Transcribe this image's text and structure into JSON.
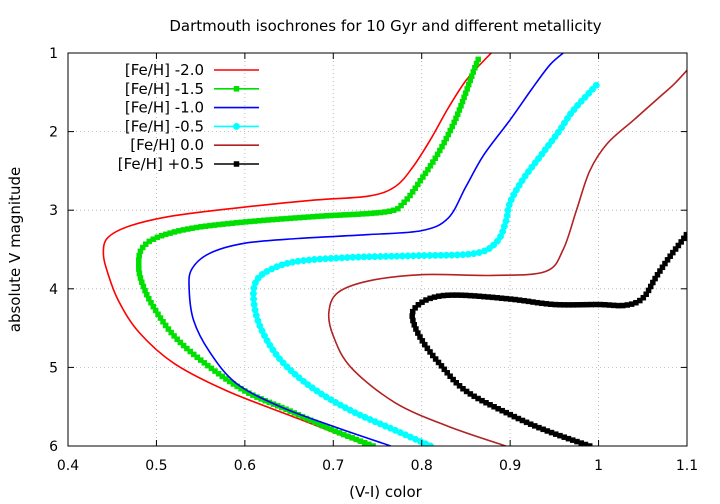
{
  "chart_data": {
    "type": "line",
    "title": "Dartmouth isochrones for 10 Gyr and different metallicity",
    "xlabel": "(V-I) color",
    "ylabel": "absolute V magnitude",
    "xlim": [
      0.4,
      1.1
    ],
    "ylim": [
      6,
      1
    ],
    "y_inverted": true,
    "grid": true,
    "legend_position": "top-left",
    "xticks": [
      "0.4",
      "0.5",
      "0.6",
      "0.7",
      "0.8",
      "0.9",
      "1",
      "1.1"
    ],
    "yticks": [
      "1",
      "2",
      "3",
      "4",
      "5",
      "6"
    ],
    "series": [
      {
        "name": "[Fe/H] -2.0",
        "color": "#ff0000",
        "marker": "none",
        "points": [
          [
            0.74,
            6.0
          ],
          [
            0.66,
            5.65
          ],
          [
            0.58,
            5.3
          ],
          [
            0.52,
            4.95
          ],
          [
            0.48,
            4.55
          ],
          [
            0.457,
            4.15
          ],
          [
            0.445,
            3.8
          ],
          [
            0.44,
            3.55
          ],
          [
            0.445,
            3.35
          ],
          [
            0.47,
            3.2
          ],
          [
            0.52,
            3.07
          ],
          [
            0.6,
            2.96
          ],
          [
            0.68,
            2.87
          ],
          [
            0.74,
            2.82
          ],
          [
            0.77,
            2.7
          ],
          [
            0.79,
            2.45
          ],
          [
            0.81,
            2.1
          ],
          [
            0.83,
            1.7
          ],
          [
            0.85,
            1.35
          ],
          [
            0.87,
            1.1
          ],
          [
            0.885,
            0.93
          ]
        ]
      },
      {
        "name": "[Fe/H] -1.5",
        "color": "#00e000",
        "marker": "square",
        "points": [
          [
            0.745,
            6.0
          ],
          [
            0.7,
            5.8
          ],
          [
            0.65,
            5.55
          ],
          [
            0.6,
            5.3
          ],
          [
            0.555,
            4.95
          ],
          [
            0.52,
            4.6
          ],
          [
            0.495,
            4.2
          ],
          [
            0.483,
            3.9
          ],
          [
            0.48,
            3.7
          ],
          [
            0.483,
            3.5
          ],
          [
            0.5,
            3.35
          ],
          [
            0.54,
            3.23
          ],
          [
            0.6,
            3.15
          ],
          [
            0.68,
            3.08
          ],
          [
            0.76,
            3.02
          ],
          [
            0.78,
            2.9
          ],
          [
            0.8,
            2.6
          ],
          [
            0.82,
            2.25
          ],
          [
            0.838,
            1.85
          ],
          [
            0.85,
            1.5
          ],
          [
            0.858,
            1.25
          ],
          [
            0.865,
            1.05
          ]
        ]
      },
      {
        "name": "[Fe/H] -1.0",
        "color": "#0000ff",
        "marker": "none",
        "points": [
          [
            0.765,
            6.0
          ],
          [
            0.7,
            5.75
          ],
          [
            0.64,
            5.5
          ],
          [
            0.59,
            5.2
          ],
          [
            0.56,
            4.8
          ],
          [
            0.542,
            4.4
          ],
          [
            0.537,
            4.0
          ],
          [
            0.54,
            3.75
          ],
          [
            0.56,
            3.55
          ],
          [
            0.6,
            3.42
          ],
          [
            0.66,
            3.36
          ],
          [
            0.74,
            3.31
          ],
          [
            0.8,
            3.26
          ],
          [
            0.83,
            3.1
          ],
          [
            0.85,
            2.7
          ],
          [
            0.87,
            2.3
          ],
          [
            0.9,
            1.85
          ],
          [
            0.925,
            1.45
          ],
          [
            0.945,
            1.15
          ],
          [
            0.96,
            1.0
          ]
        ]
      },
      {
        "name": "[Fe/H] -0.5",
        "color": "#00ffff",
        "marker": "circle",
        "points": [
          [
            0.81,
            6.0
          ],
          [
            0.77,
            5.8
          ],
          [
            0.72,
            5.55
          ],
          [
            0.675,
            5.25
          ],
          [
            0.64,
            4.9
          ],
          [
            0.618,
            4.5
          ],
          [
            0.61,
            4.15
          ],
          [
            0.613,
            3.9
          ],
          [
            0.63,
            3.75
          ],
          [
            0.66,
            3.65
          ],
          [
            0.72,
            3.6
          ],
          [
            0.79,
            3.58
          ],
          [
            0.86,
            3.55
          ],
          [
            0.885,
            3.4
          ],
          [
            0.895,
            3.15
          ],
          [
            0.9,
            2.9
          ],
          [
            0.915,
            2.6
          ],
          [
            0.935,
            2.3
          ],
          [
            0.955,
            2.0
          ],
          [
            0.97,
            1.75
          ],
          [
            0.99,
            1.5
          ],
          [
            1.0,
            1.38
          ]
        ]
      },
      {
        "name": "[Fe/H]  0.0",
        "color": "#b22222",
        "marker": "none",
        "points": [
          [
            0.895,
            6.0
          ],
          [
            0.83,
            5.75
          ],
          [
            0.77,
            5.45
          ],
          [
            0.72,
            5.0
          ],
          [
            0.7,
            4.6
          ],
          [
            0.695,
            4.3
          ],
          [
            0.705,
            4.05
          ],
          [
            0.74,
            3.9
          ],
          [
            0.8,
            3.82
          ],
          [
            0.88,
            3.83
          ],
          [
            0.94,
            3.78
          ],
          [
            0.96,
            3.5
          ],
          [
            0.975,
            3.0
          ],
          [
            0.99,
            2.5
          ],
          [
            1.01,
            2.15
          ],
          [
            1.04,
            1.85
          ],
          [
            1.07,
            1.55
          ],
          [
            1.085,
            1.4
          ],
          [
            1.1,
            1.22
          ]
        ]
      },
      {
        "name": "[Fe/H] +0.5",
        "color": "#000000",
        "marker": "square",
        "points": [
          [
            0.99,
            6.0
          ],
          [
            0.94,
            5.8
          ],
          [
            0.9,
            5.6
          ],
          [
            0.85,
            5.3
          ],
          [
            0.82,
            4.95
          ],
          [
            0.8,
            4.65
          ],
          [
            0.79,
            4.4
          ],
          [
            0.792,
            4.25
          ],
          [
            0.81,
            4.12
          ],
          [
            0.84,
            4.08
          ],
          [
            0.9,
            4.13
          ],
          [
            0.95,
            4.2
          ],
          [
            1.0,
            4.2
          ],
          [
            1.03,
            4.21
          ],
          [
            1.05,
            4.12
          ],
          [
            1.065,
            3.85
          ],
          [
            1.08,
            3.6
          ],
          [
            1.095,
            3.38
          ],
          [
            1.1,
            3.3
          ]
        ]
      }
    ]
  }
}
